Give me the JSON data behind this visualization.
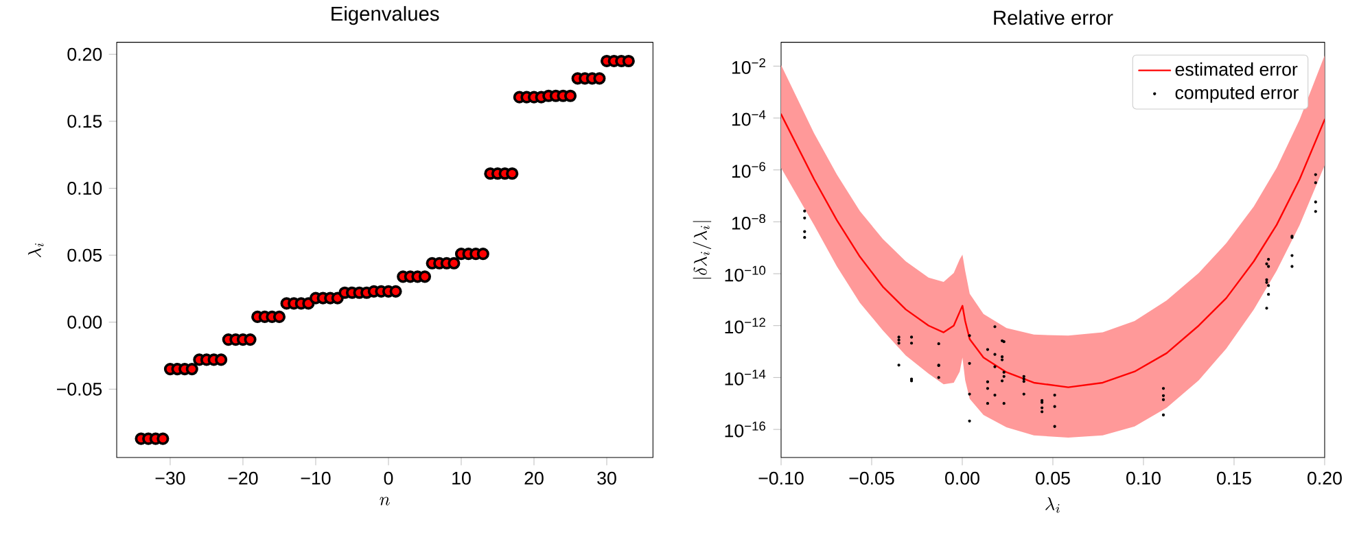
{
  "chart_data": [
    {
      "type": "scatter",
      "title": "Eigenvalues",
      "xlabel": "n",
      "ylabel": "\\lambda_i",
      "marker": "circle",
      "x": [
        -34,
        -33,
        -32,
        -31,
        -30,
        -29,
        -28,
        -27,
        -26,
        -25,
        -24,
        -23,
        -22,
        -21,
        -20,
        -19,
        -18,
        -17,
        -16,
        -15,
        -14,
        -13,
        -12,
        -11,
        -10,
        -9,
        -8,
        -7,
        -6,
        -5,
        -4,
        -3,
        -2,
        -1,
        0,
        1,
        2,
        3,
        4,
        5,
        6,
        7,
        8,
        9,
        10,
        11,
        12,
        13,
        14,
        15,
        16,
        17,
        18,
        19,
        20,
        21,
        22,
        23,
        24,
        25,
        26,
        27,
        28,
        29,
        30,
        31,
        32,
        33
      ],
      "series": [
        {
          "color": "#ff0000",
          "values": [
            -0.087,
            -0.087,
            -0.087,
            -0.087,
            -0.035,
            -0.035,
            -0.035,
            -0.035,
            -0.028,
            -0.028,
            -0.028,
            -0.028,
            -0.013,
            -0.013,
            -0.013,
            -0.013,
            0.004,
            0.004,
            0.004,
            0.004,
            0.014,
            0.014,
            0.014,
            0.014,
            0.018,
            0.018,
            0.018,
            0.018,
            0.022,
            0.022,
            0.022,
            0.022,
            0.023,
            0.023,
            0.023,
            0.023,
            0.034,
            0.034,
            0.034,
            0.034,
            0.044,
            0.044,
            0.044,
            0.044,
            0.051,
            0.051,
            0.051,
            0.051,
            0.111,
            0.111,
            0.111,
            0.111,
            0.168,
            0.168,
            0.168,
            0.168,
            0.169,
            0.169,
            0.169,
            0.169,
            0.182,
            0.182,
            0.182,
            0.182,
            0.195,
            0.195,
            0.195,
            0.195
          ]
        }
      ],
      "xlim": [
        -37.35,
        36.35
      ],
      "ylim": [
        -0.101,
        0.209
      ],
      "xticks": [
        {
          "value": -30,
          "label": "−30"
        },
        {
          "value": -20,
          "label": "−20"
        },
        {
          "value": -10,
          "label": "−10"
        },
        0,
        10,
        20,
        30
      ],
      "yticks": [
        {
          "value": -0.05,
          "label": "−0.05"
        },
        {
          "value": 0,
          "label": "0.00"
        },
        {
          "value": 0.05,
          "label": "0.05"
        },
        {
          "value": 0.1,
          "label": "0.10"
        },
        {
          "value": 0.15,
          "label": "0.15"
        },
        {
          "value": 0.2,
          "label": "0.20"
        }
      ]
    },
    {
      "type": "line",
      "title": "Relative error",
      "xlabel": "\\lambda_i",
      "ylabel": "|\\delta\\lambda_i/\\lambda_i|",
      "log": "y",
      "legend": "top right",
      "series": [
        {
          "name": "estimated error",
          "type": "line",
          "color": "#ff0000",
          "x": [
            -0.1,
            -0.0818,
            -0.0692,
            -0.0565,
            -0.0439,
            -0.0312,
            -0.0186,
            -0.0103,
            -0.0047,
            -0.0014,
            0.0001,
            0.0016,
            0.0041,
            0.0117,
            0.0244,
            0.0395,
            0.0585,
            0.0775,
            0.0951,
            0.1128,
            0.1305,
            0.1457,
            0.1609,
            0.1735,
            0.1862,
            0.2
          ],
          "values": [
            0.00014,
            4.4e-07,
            1.15e-08,
            4.5e-10,
            3.2e-11,
            4.2e-12,
            1e-12,
            5.5e-13,
            1e-12,
            3.4e-12,
            5.8e-12,
            1.5e-12,
            3e-13,
            5.9e-14,
            1.6e-14,
            6.3e-15,
            4.2e-15,
            6.3e-15,
            1.7e-14,
            8.7e-14,
            1e-12,
            1.15e-11,
            3e-10,
            7.6e-09,
            4.4e-07,
            8.7e-05
          ],
          "upper": [
            0.011,
            2.6e-05,
            6.6e-07,
            2.6e-08,
            2.2e-09,
            3e-10,
            7.1e-11,
            4.8e-11,
            1.07e-10,
            3.6e-10,
            5.4e-10,
            1.3e-10,
            1.7e-11,
            2.8e-12,
            8.1e-13,
            4.5e-13,
            4.1e-13,
            5.5e-13,
            1.5e-12,
            9.3e-12,
            1.07e-10,
            1.5e-09,
            3.9e-08,
            1.2e-06,
            8.7e-05,
            0.026
          ],
          "lower": [
            1.2e-06,
            7.6e-09,
            1.9e-10,
            7.6e-12,
            6.6e-13,
            7.1e-14,
            1.4e-14,
            5.5e-15,
            6.3e-15,
            1.7e-14,
            5.9e-14,
            7.9e-15,
            1.5e-15,
            3.6e-16,
            1.2e-16,
            5.9e-17,
            4.8e-17,
            5.9e-17,
            1.3e-16,
            6.8e-16,
            7.8e-15,
            1.3e-13,
            4.2e-12,
            1.3e-10,
            7.6e-09,
            1.5e-06
          ]
        },
        {
          "name": "computed error",
          "type": "scatter",
          "color": "#000000",
          "x": [
            -0.087,
            -0.087,
            -0.087,
            -0.087,
            -0.035,
            -0.035,
            -0.035,
            -0.035,
            -0.028,
            -0.028,
            -0.028,
            -0.028,
            -0.013,
            -0.013,
            -0.013,
            -0.013,
            0.004,
            0.004,
            0.004,
            0.004,
            0.014,
            0.014,
            0.014,
            0.014,
            0.018,
            0.018,
            0.018,
            0.018,
            0.022,
            0.022,
            0.022,
            0.022,
            0.023,
            0.023,
            0.023,
            0.023,
            0.034,
            0.034,
            0.034,
            0.034,
            0.044,
            0.044,
            0.044,
            0.044,
            0.051,
            0.051,
            0.051,
            0.111,
            0.111,
            0.111,
            0.111,
            0.168,
            0.168,
            0.168,
            0.168,
            0.169,
            0.169,
            0.169,
            0.169,
            0.182,
            0.182,
            0.182,
            0.182,
            0.195,
            0.195,
            0.195,
            0.195
          ],
          "values": [
            2.6e-08,
            1.4e-08,
            4.2e-09,
            2.5e-09,
            3.6e-13,
            2.8e-13,
            2.1e-13,
            3e-14,
            3.6e-13,
            2.1e-13,
            8.7e-15,
            7.4e-15,
            2e-13,
            3e-14,
            2.9e-14,
            1e-14,
            4.1e-13,
            3.5e-14,
            2.3e-15,
            2.1e-16,
            1.2e-13,
            6.8e-15,
            3.8e-15,
            1e-15,
            9.1e-13,
            7.8e-14,
            2.6e-14,
            2.1e-15,
            2.6e-13,
            6.3e-14,
            4.8e-14,
            7.4e-15,
            2.4e-13,
            1.6e-14,
            1.1e-14,
            1e-15,
            1.1e-14,
            8.9e-15,
            7.1e-15,
            2.3e-15,
            1.3e-15,
            1.1e-15,
            6.8e-16,
            4.8e-16,
            2.1e-15,
            7.6e-16,
            1.3e-16,
            3.8e-15,
            2e-15,
            1.4e-15,
            3.6e-16,
            2.4e-10,
            5.8e-11,
            4.6e-11,
            4.7e-12,
            3.6e-10,
            1.9e-10,
            3.5e-11,
            1.6e-11,
            2.8e-09,
            2.5e-09,
            5e-10,
            1.9e-10,
            6.6e-07,
            3.2e-07,
            5.8e-08,
            2.5e-08
          ]
        }
      ],
      "xlim": [
        -0.1,
        0.2
      ],
      "ylim": [
        8.3e-18,
        0.083
      ],
      "xticks": [
        {
          "value": -0.1,
          "label": "−0.10"
        },
        {
          "value": -0.05,
          "label": "−0.05"
        },
        {
          "value": 0,
          "label": "0.00"
        },
        {
          "value": 0.05,
          "label": "0.05"
        },
        {
          "value": 0.1,
          "label": "0.10"
        },
        {
          "value": 0.15,
          "label": "0.15"
        },
        {
          "value": 0.2,
          "label": "0.20"
        }
      ],
      "yticks": [
        {
          "value": 0.01,
          "label": "10$^{−2}$"
        },
        {
          "value": 0.0001,
          "label": "10$^{−4}$"
        },
        {
          "value": 1e-06,
          "label": "10$^{−6}$"
        },
        {
          "value": 1e-08,
          "label": "10$^{−8}$"
        },
        {
          "value": 1e-10,
          "label": "10$^{−10}$"
        },
        {
          "value": 1e-12,
          "label": "10$^{−12}$"
        },
        {
          "value": 1e-14,
          "label": "10$^{−14}$"
        },
        {
          "value": 1e-16,
          "label": "10$^{−16}$"
        }
      ]
    }
  ]
}
